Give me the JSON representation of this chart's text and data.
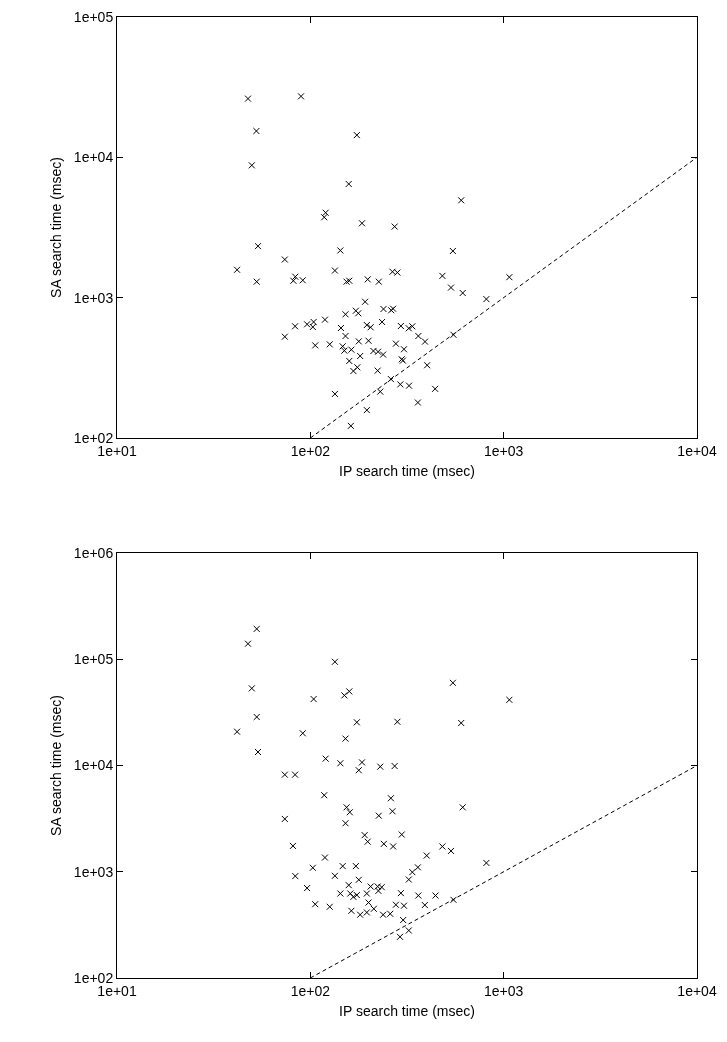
{
  "chart_data": [
    {
      "type": "scatter",
      "xlabel": "IP search time (msec)",
      "ylabel": "SA search time (msec)",
      "log": "xy",
      "xlim": [
        10,
        10000
      ],
      "ylim": [
        100,
        100000
      ],
      "xticks": [
        {
          "value": 10,
          "label": "1e+01"
        },
        {
          "value": 100,
          "label": "1e+02"
        },
        {
          "value": 1000,
          "label": "1e+03"
        },
        {
          "value": 10000,
          "label": "1e+04"
        }
      ],
      "yticks": [
        {
          "value": 100,
          "label": "1e+02"
        },
        {
          "value": 1000,
          "label": "1e+03"
        },
        {
          "value": 10000,
          "label": "1e+04"
        },
        {
          "value": 100000,
          "label": "1e+05"
        }
      ],
      "series": [
        {
          "marker": "cross",
          "color": "#000000",
          "x": [
            47.6,
            89.5,
            52.6,
            174,
            49.8,
            158,
            603,
            120,
            118,
            185,
            273,
            53.6,
            143,
            546,
            73.8,
            41.8,
            134,
            266,
            282,
            482,
            1070,
            52.8,
            81.7,
            83.6,
            91.4,
            154,
            159,
            198,
            226,
            534,
            614,
            814,
            192,
            152,
            172,
            177,
            239,
            262,
            268,
            235,
            119,
            104,
            103,
            96.2,
            83.4,
            73.8,
            144,
            152,
            196,
            205,
            294,
            323,
            337,
            362,
            392,
            550,
            106,
            126,
            147,
            150,
            163,
            178,
            200,
            212,
            224,
            238,
            277,
            305,
            181,
            159,
            297,
            301,
            402,
            175,
            167,
            223,
            261,
            292,
            324,
            442,
            230,
            134,
            360,
            196,
            162
          ],
          "values": [
            26200,
            27200,
            15400,
            14400,
            8770,
            6460,
            4940,
            4030,
            3740,
            3390,
            3210,
            2330,
            2170,
            2150,
            1870,
            1580,
            1560,
            1530,
            1510,
            1430,
            1400,
            1300,
            1320,
            1410,
            1330,
            1300,
            1320,
            1350,
            1300,
            1180,
            1080,
            977,
            935,
            761,
            807,
            774,
            830,
            813,
            834,
            671,
            697,
            671,
            618,
            646,
            625,
            527,
            608,
            533,
            638,
            615,
            628,
            605,
            625,
            533,
            486,
            544,
            457,
            465,
            450,
            419,
            426,
            488,
            493,
            417,
            412,
            393,
            470,
            429,
            384,
            354,
            364,
            356,
            330,
            319,
            300,
            302,
            263,
            241,
            236,
            224,
            214,
            206,
            179,
            158,
            122
          ]
        },
        {
          "type": "line",
          "color": "#000000",
          "line_style": "dashed",
          "x": [
            100,
            10000
          ],
          "values": [
            100,
            10000
          ]
        }
      ]
    },
    {
      "type": "scatter",
      "xlabel": "IP search time (msec)",
      "ylabel": "SA search time (msec)",
      "log": "xy",
      "xlim": [
        10,
        10000
      ],
      "ylim": [
        100,
        1000000
      ],
      "xticks": [
        {
          "value": 10,
          "label": "1e+01"
        },
        {
          "value": 100,
          "label": "1e+02"
        },
        {
          "value": 1000,
          "label": "1e+03"
        },
        {
          "value": 10000,
          "label": "1e+04"
        }
      ],
      "yticks": [
        {
          "value": 100,
          "label": "1e+02"
        },
        {
          "value": 1000,
          "label": "1e+03"
        },
        {
          "value": 10000,
          "label": "1e+04"
        },
        {
          "value": 100000,
          "label": "1e+05"
        },
        {
          "value": 1000000,
          "label": "1e+06"
        }
      ],
      "series": [
        {
          "marker": "cross",
          "color": "#000000",
          "x": [
            52.8,
            47.6,
            134,
            546,
            49.8,
            1070,
            104,
            150,
            159,
            52.8,
            174,
            282,
            603,
            41.8,
            91.4,
            152,
            53.6,
            120,
            143,
            185,
            178,
            230,
            273,
            73.8,
            83.4,
            118,
            261,
            154,
            160,
            266,
            614,
            73.8,
            226,
            152,
            191,
            198,
            297,
            240,
            268,
            482,
            534,
            81.3,
            400,
            119,
            814,
            103,
            147,
            172,
            360,
            337,
            323,
            83.6,
            134,
            178,
            158,
            205,
            223,
            234,
            225,
            96.2,
            143,
            161,
            167,
            174,
            196,
            294,
            362,
            444,
            106,
            126,
            200,
            213,
            277,
            305,
            391,
            550,
            163,
            181,
            196,
            238,
            259,
            302,
            323,
            291
          ],
          "values": [
            193000,
            140000,
            94600,
            60000,
            53200,
            41500,
            42200,
            45700,
            49800,
            28600,
            25500,
            25800,
            25100,
            20800,
            20100,
            17900,
            13400,
            11600,
            10500,
            10700,
            9020,
            9750,
            9880,
            8200,
            8200,
            5250,
            4920,
            4040,
            3630,
            3710,
            4040,
            3140,
            3370,
            2860,
            2210,
            1920,
            2240,
            1830,
            1730,
            1730,
            1570,
            1750,
            1420,
            1360,
            1210,
            1090,
            1130,
            1130,
            1100,
            991,
            845,
            910,
            916,
            840,
            748,
            726,
            726,
            716,
            661,
            702,
            624,
            624,
            580,
            603,
            624,
            629,
            597,
            597,
            495,
            468,
            513,
            448,
            489,
            479,
            486,
            544,
            429,
            394,
            414,
            394,
            402,
            351,
            280,
            244
          ]
        },
        {
          "type": "line",
          "color": "#000000",
          "line_style": "dashed",
          "x": [
            100,
            10000
          ],
          "values": [
            100,
            10000
          ]
        }
      ]
    }
  ]
}
